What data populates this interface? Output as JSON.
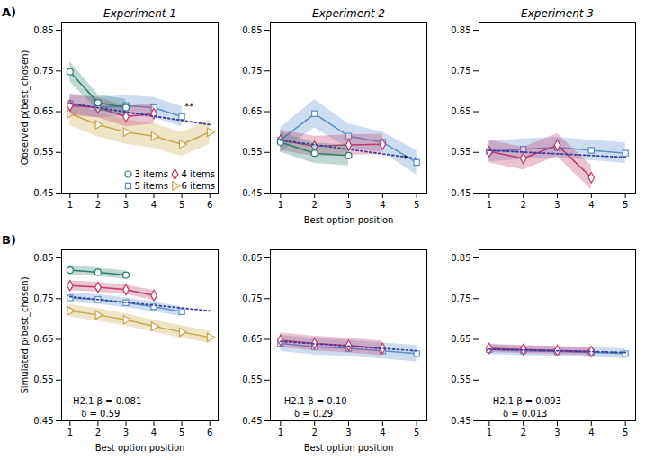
{
  "chart_data": [
    {
      "type": "line",
      "panel_label": "A)",
      "title": "Experiment 1",
      "ylabel": "Observed p(best_chosen)",
      "xlim": [
        0.7,
        6.3
      ],
      "xticks": [
        1,
        2,
        3,
        4,
        5,
        6
      ],
      "ylim": [
        0.45,
        0.87
      ],
      "yticks": [
        0.45,
        0.55,
        0.65,
        0.75,
        0.85
      ],
      "legend": "lower right",
      "series": [
        {
          "name": "3 items",
          "color": "#2d7d6e",
          "marker": "circle",
          "x": [
            1,
            2,
            3
          ],
          "values": [
            0.748,
            0.672,
            0.66
          ],
          "yerr": [
            0.025,
            0.02,
            0.02
          ]
        },
        {
          "name": "4 items",
          "color": "#c0396b",
          "marker": "diamond",
          "x": [
            1,
            2,
            3,
            4
          ],
          "values": [
            0.665,
            0.66,
            0.638,
            0.645
          ],
          "yerr": [
            0.025,
            0.025,
            0.025,
            0.025
          ]
        },
        {
          "name": "5 items",
          "color": "#5b8fc9",
          "marker": "square",
          "x": [
            1,
            2,
            3,
            4,
            5
          ],
          "values": [
            0.67,
            0.66,
            0.665,
            0.66,
            0.638
          ],
          "yerr": [
            0.025,
            0.025,
            0.025,
            0.025,
            0.025
          ]
        },
        {
          "name": "6 items",
          "color": "#c8a84b",
          "marker": "triangle-right",
          "x": [
            1,
            2,
            3,
            4,
            5,
            6
          ],
          "values": [
            0.645,
            0.618,
            0.6,
            0.59,
            0.57,
            0.6
          ],
          "yerr": [
            0.03,
            0.03,
            0.03,
            0.03,
            0.03,
            0.03
          ]
        }
      ],
      "trend": {
        "x": [
          1,
          6
        ],
        "values": [
          0.67,
          0.618
        ],
        "color": "#3c3ca0",
        "line_style": "dotted"
      },
      "annotations": [
        {
          "text": "**",
          "x": 5.1,
          "y": 0.655
        }
      ]
    },
    {
      "type": "line",
      "title": "Experiment 2",
      "xlabel": "Best option position",
      "xlim": [
        0.7,
        5.3
      ],
      "xticks": [
        1,
        2,
        3,
        4,
        5
      ],
      "ylim": [
        0.45,
        0.87
      ],
      "yticks": [
        0.45,
        0.55,
        0.65,
        0.75,
        0.85
      ],
      "series": [
        {
          "name": "3 items",
          "color": "#2d7d6e",
          "marker": "circle",
          "x": [
            1,
            2,
            3
          ],
          "values": [
            0.575,
            0.548,
            0.542
          ],
          "yerr": [
            0.025,
            0.025,
            0.025
          ]
        },
        {
          "name": "4 items",
          "color": "#c0396b",
          "marker": "diamond",
          "x": [
            1,
            2,
            3,
            4
          ],
          "values": [
            0.58,
            0.565,
            0.568,
            0.57
          ],
          "yerr": [
            0.025,
            0.025,
            0.025,
            0.025
          ]
        },
        {
          "name": "5 items",
          "color": "#5b8fc9",
          "marker": "square",
          "x": [
            1,
            2,
            3,
            4,
            5
          ],
          "values": [
            0.58,
            0.645,
            0.59,
            0.575,
            0.525
          ],
          "yerr": [
            0.03,
            0.035,
            0.03,
            0.025,
            0.03
          ]
        }
      ],
      "trend": {
        "x": [
          1,
          5
        ],
        "values": [
          0.58,
          0.535
        ],
        "color": "#3c3ca0",
        "line_style": "dotted"
      },
      "annotations": [
        {
          "text": "*",
          "x": 4.6,
          "y": 0.527
        }
      ]
    },
    {
      "type": "line",
      "title": "Experiment 3",
      "xlim": [
        0.7,
        5.3
      ],
      "xticks": [
        1,
        2,
        3,
        4,
        5
      ],
      "ylim": [
        0.45,
        0.87
      ],
      "yticks": [
        0.45,
        0.55,
        0.65,
        0.75,
        0.85
      ],
      "series": [
        {
          "name": "4 items",
          "color": "#c0396b",
          "marker": "diamond",
          "x": [
            1,
            2,
            3,
            4
          ],
          "values": [
            0.552,
            0.535,
            0.568,
            0.488
          ],
          "yerr": [
            0.028,
            0.028,
            0.028,
            0.03
          ]
        },
        {
          "name": "5 items",
          "color": "#5b8fc9",
          "marker": "square",
          "x": [
            1,
            2,
            3,
            4,
            5
          ],
          "values": [
            0.552,
            0.558,
            0.562,
            0.555,
            0.548
          ],
          "yerr": [
            0.025,
            0.025,
            0.025,
            0.025,
            0.025
          ]
        }
      ],
      "trend": {
        "x": [
          1,
          5
        ],
        "values": [
          0.555,
          0.538
        ],
        "color": "#3c3ca0",
        "line_style": "dotted"
      }
    },
    {
      "type": "line",
      "panel_label": "B)",
      "ylabel": "Simulated p(best_chosen)",
      "xlabel": "Best option position",
      "xlim": [
        0.7,
        6.3
      ],
      "xticks": [
        1,
        2,
        3,
        4,
        5,
        6
      ],
      "ylim": [
        0.45,
        0.87
      ],
      "yticks": [
        0.45,
        0.55,
        0.65,
        0.75,
        0.85
      ],
      "series": [
        {
          "name": "3 items",
          "color": "#2d7d6e",
          "marker": "circle",
          "x": [
            1,
            2,
            3
          ],
          "values": [
            0.82,
            0.815,
            0.808
          ],
          "yerr": [
            0.012,
            0.01,
            0.01
          ]
        },
        {
          "name": "4 items",
          "color": "#c0396b",
          "marker": "diamond",
          "x": [
            1,
            2,
            3,
            4
          ],
          "values": [
            0.782,
            0.778,
            0.772,
            0.758
          ],
          "yerr": [
            0.012,
            0.012,
            0.012,
            0.012
          ]
        },
        {
          "name": "5 items",
          "color": "#5b8fc9",
          "marker": "square",
          "x": [
            1,
            2,
            3,
            4,
            5
          ],
          "values": [
            0.752,
            0.748,
            0.74,
            0.73,
            0.718
          ],
          "yerr": [
            0.012,
            0.012,
            0.012,
            0.012,
            0.012
          ]
        },
        {
          "name": "6 items",
          "color": "#c8a84b",
          "marker": "triangle-right",
          "x": [
            1,
            2,
            3,
            4,
            5,
            6
          ],
          "values": [
            0.72,
            0.71,
            0.698,
            0.682,
            0.668,
            0.655
          ],
          "yerr": [
            0.015,
            0.015,
            0.015,
            0.015,
            0.015,
            0.015
          ]
        }
      ],
      "trend": {
        "x": [
          1,
          6
        ],
        "values": [
          0.755,
          0.72
        ],
        "color": "#3c3ca0",
        "line_style": "dotted"
      },
      "annotations": [
        {
          "text": "H2.1 β = 0.081",
          "x": 1.1,
          "y": 0.49
        },
        {
          "text": "δ = 0.59",
          "x": 1.4,
          "y": 0.46
        }
      ]
    },
    {
      "type": "line",
      "xlabel": "Best option position",
      "xlim": [
        0.7,
        5.3
      ],
      "xticks": [
        1,
        2,
        3,
        4,
        5
      ],
      "ylim": [
        0.45,
        0.87
      ],
      "yticks": [
        0.45,
        0.55,
        0.65,
        0.75,
        0.85
      ],
      "series": [
        {
          "name": "4 items",
          "color": "#c0396b",
          "marker": "diamond",
          "x": [
            1,
            2,
            3,
            4
          ],
          "values": [
            0.648,
            0.64,
            0.635,
            0.628
          ],
          "yerr": [
            0.018,
            0.018,
            0.018,
            0.018
          ]
        },
        {
          "name": "5 items",
          "color": "#5b8fc9",
          "marker": "square",
          "x": [
            1,
            2,
            3,
            4,
            5
          ],
          "values": [
            0.64,
            0.632,
            0.628,
            0.622,
            0.615
          ],
          "yerr": [
            0.02,
            0.02,
            0.02,
            0.02,
            0.02
          ]
        }
      ],
      "trend": {
        "x": [
          1,
          5
        ],
        "values": [
          0.645,
          0.622
        ],
        "color": "#3c3ca0",
        "line_style": "dotted"
      },
      "annotations": [
        {
          "text": "H2.1 β = 0.10",
          "x": 1.1,
          "y": 0.49
        },
        {
          "text": "δ = 0.29",
          "x": 1.4,
          "y": 0.46
        }
      ]
    },
    {
      "type": "line",
      "xlim": [
        0.7,
        5.3
      ],
      "xticks": [
        1,
        2,
        3,
        4,
        5
      ],
      "ylim": [
        0.45,
        0.87
      ],
      "yticks": [
        0.45,
        0.55,
        0.65,
        0.75,
        0.85
      ],
      "series": [
        {
          "name": "4 items",
          "color": "#c0396b",
          "marker": "diamond",
          "x": [
            1,
            2,
            3,
            4
          ],
          "values": [
            0.628,
            0.625,
            0.623,
            0.62
          ],
          "yerr": [
            0.01,
            0.01,
            0.01,
            0.01
          ]
        },
        {
          "name": "5 items",
          "color": "#5b8fc9",
          "marker": "square",
          "x": [
            1,
            2,
            3,
            4,
            5
          ],
          "values": [
            0.625,
            0.622,
            0.62,
            0.618,
            0.615
          ],
          "yerr": [
            0.012,
            0.012,
            0.012,
            0.012,
            0.012
          ]
        }
      ],
      "trend": {
        "x": [
          1,
          5
        ],
        "values": [
          0.626,
          0.618
        ],
        "color": "#3c3ca0",
        "line_style": "dotted"
      },
      "annotations": [
        {
          "text": "H2.1 β = 0.093",
          "x": 1.1,
          "y": 0.49
        },
        {
          "text": "δ = 0.013",
          "x": 1.4,
          "y": 0.46
        }
      ]
    }
  ]
}
